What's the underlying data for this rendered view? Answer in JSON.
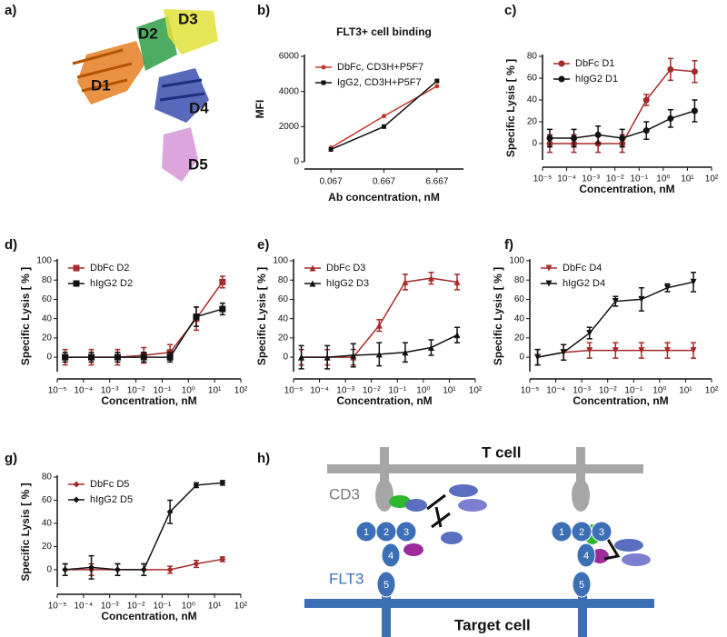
{
  "panel_labels": [
    "a)",
    "b)",
    "c)",
    "d)",
    "e)",
    "f)",
    "g)",
    "h)"
  ],
  "structure": {
    "domains": [
      "D1",
      "D2",
      "D3",
      "D4",
      "D5"
    ]
  },
  "diagram": {
    "cell_labels": [
      "T cell",
      "Target cell"
    ],
    "receptor_labels": [
      "CD3",
      "FLT3"
    ],
    "domains": [
      "1",
      "2",
      "3",
      "4",
      "5",
      "1",
      "2",
      "3",
      "4",
      "5"
    ]
  },
  "chart_data": [
    {
      "type": "line",
      "title": "FLT3+ cell binding",
      "x_label": "Ab concentration, nM",
      "y_label": "MFI",
      "categories": [
        "0.067",
        "0.667",
        "6.667"
      ],
      "ylim": [
        0,
        6000
      ],
      "yticks": [
        0,
        2000,
        4000,
        6000
      ],
      "legend": "upper left",
      "series": [
        {
          "name": "DbFc, CD3H+P5F7",
          "color": "#c0392b",
          "marker": "circle",
          "values": [
            800,
            2600,
            4300
          ]
        },
        {
          "name": "IgG2, CD3H+P5F7",
          "color": "#111111",
          "marker": "square",
          "values": [
            700,
            2000,
            4600
          ]
        }
      ]
    },
    {
      "type": "line",
      "xscale": "log",
      "x_label": "Concentration, nM",
      "y_label": "Specific Lysis [ % ]",
      "x": [
        2e-05,
        0.0002,
        0.002,
        0.02,
        0.2,
        2,
        20
      ],
      "xlim": [
        1e-05,
        100
      ],
      "xticks": [
        {
          "value": 1e-05,
          "label": "10⁻⁵"
        },
        {
          "value": 0.0001,
          "label": "10⁻⁴"
        },
        {
          "value": 0.001,
          "label": "10⁻³"
        },
        {
          "value": 0.01,
          "label": "10⁻²"
        },
        {
          "value": 0.1,
          "label": "10⁻¹"
        },
        {
          "value": 1,
          "label": "10⁰"
        },
        {
          "value": 10,
          "label": "10¹"
        },
        {
          "value": 100,
          "label": "10²"
        }
      ],
      "ylim": [
        -15,
        80
      ],
      "yticks": [
        0,
        20,
        40,
        60,
        80
      ],
      "legend": "upper left",
      "series": [
        {
          "name": "DbFc D1",
          "color": "#a52a2a",
          "marker": "circle",
          "values": [
            0,
            0,
            0,
            0,
            40,
            68,
            66
          ],
          "errors": [
            8,
            8,
            8,
            8,
            5,
            10,
            10
          ]
        },
        {
          "name": "hIgG2 D1",
          "color": "#111111",
          "marker": "circle",
          "values": [
            5,
            5,
            8,
            5,
            12,
            23,
            30
          ],
          "errors": [
            8,
            8,
            8,
            8,
            8,
            8,
            10
          ]
        }
      ]
    },
    {
      "type": "line",
      "xscale": "log",
      "x_label": "Concentration, nM",
      "y_label": "Specific Lysis [ % ]",
      "x": [
        2e-05,
        0.0002,
        0.002,
        0.02,
        0.2,
        2,
        20
      ],
      "xlim": [
        1e-05,
        100
      ],
      "xticks": [
        {
          "value": 1e-05,
          "label": "10⁻⁵"
        },
        {
          "value": 0.0001,
          "label": "10⁻⁴"
        },
        {
          "value": 0.001,
          "label": "10⁻³"
        },
        {
          "value": 0.01,
          "label": "10⁻²"
        },
        {
          "value": 0.1,
          "label": "10⁻¹"
        },
        {
          "value": 1,
          "label": "10⁰"
        },
        {
          "value": 10,
          "label": "10¹"
        },
        {
          "value": 100,
          "label": "10²"
        }
      ],
      "ylim": [
        -15,
        100
      ],
      "yticks": [
        0,
        20,
        40,
        60,
        80,
        100
      ],
      "legend": "upper left",
      "series": [
        {
          "name": "DbFc D2",
          "color": "#a52a2a",
          "marker": "square",
          "values": [
            0,
            0,
            0,
            2,
            5,
            40,
            78
          ],
          "errors": [
            8,
            8,
            8,
            8,
            8,
            12,
            6
          ]
        },
        {
          "name": "hIgG2 D2",
          "color": "#111111",
          "marker": "square",
          "values": [
            0,
            0,
            0,
            0,
            0,
            42,
            50
          ],
          "errors": [
            5,
            5,
            5,
            5,
            5,
            10,
            6
          ]
        }
      ]
    },
    {
      "type": "line",
      "xscale": "log",
      "x_label": "Concentration, nM",
      "y_label": "Specific Lysis [ % ]",
      "x": [
        2e-05,
        0.0002,
        0.002,
        0.02,
        0.2,
        2,
        20
      ],
      "xlim": [
        1e-05,
        100
      ],
      "xticks": [
        {
          "value": 1e-05,
          "label": "10⁻⁵"
        },
        {
          "value": 0.0001,
          "label": "10⁻⁴"
        },
        {
          "value": 0.001,
          "label": "10⁻³"
        },
        {
          "value": 0.01,
          "label": "10⁻²"
        },
        {
          "value": 0.1,
          "label": "10⁻¹"
        },
        {
          "value": 1,
          "label": "10⁰"
        },
        {
          "value": 10,
          "label": "10¹"
        },
        {
          "value": 100,
          "label": "10²"
        }
      ],
      "ylim": [
        -15,
        100
      ],
      "yticks": [
        0,
        20,
        40,
        60,
        80,
        100
      ],
      "legend": "upper left",
      "series": [
        {
          "name": "DbFc D3",
          "color": "#a52a2a",
          "marker": "triangle",
          "values": [
            0,
            0,
            0,
            33,
            78,
            82,
            78
          ],
          "errors": [
            8,
            8,
            8,
            6,
            8,
            6,
            8
          ]
        },
        {
          "name": "hIgG2 D3",
          "color": "#111111",
          "marker": "triangle",
          "values": [
            0,
            0,
            2,
            3,
            5,
            10,
            23
          ],
          "errors": [
            12,
            12,
            12,
            12,
            10,
            8,
            8
          ]
        }
      ]
    },
    {
      "type": "line",
      "xscale": "log",
      "x_label": "Concentration, nM",
      "y_label": "Specific Lysis [ % ]",
      "x": [
        2e-05,
        0.0002,
        0.002,
        0.02,
        0.2,
        2,
        20
      ],
      "xlim": [
        1e-05,
        100
      ],
      "xticks": [
        {
          "value": 1e-05,
          "label": "10⁻⁵"
        },
        {
          "value": 0.0001,
          "label": "10⁻⁴"
        },
        {
          "value": 0.001,
          "label": "10⁻³"
        },
        {
          "value": 0.01,
          "label": "10⁻²"
        },
        {
          "value": 0.1,
          "label": "10⁻¹"
        },
        {
          "value": 1,
          "label": "10⁰"
        },
        {
          "value": 10,
          "label": "10¹"
        },
        {
          "value": 100,
          "label": "10²"
        }
      ],
      "ylim": [
        -15,
        100
      ],
      "yticks": [
        0,
        20,
        40,
        60,
        80,
        100
      ],
      "legend": "upper left",
      "series": [
        {
          "name": "DbFc D4",
          "color": "#a52a2a",
          "marker": "triangle-down",
          "values": [
            0,
            5,
            7,
            7,
            7,
            7,
            7
          ],
          "errors": [
            8,
            8,
            8,
            8,
            8,
            8,
            8
          ]
        },
        {
          "name": "hIgG2 D4",
          "color": "#111111",
          "marker": "triangle-down",
          "values": [
            0,
            5,
            25,
            58,
            60,
            72,
            78
          ],
          "errors": [
            8,
            8,
            6,
            5,
            12,
            4,
            10
          ]
        }
      ]
    },
    {
      "type": "line",
      "xscale": "log",
      "x_label": "Concentration, nM",
      "y_label": "Specific Lysis [ % ]",
      "x": [
        2e-05,
        0.0002,
        0.002,
        0.02,
        0.2,
        2,
        20
      ],
      "xlim": [
        1e-05,
        100
      ],
      "xticks": [
        {
          "value": 1e-05,
          "label": "10⁻⁵"
        },
        {
          "value": 0.0001,
          "label": "10⁻⁴"
        },
        {
          "value": 0.001,
          "label": "10⁻³"
        },
        {
          "value": 0.01,
          "label": "10⁻²"
        },
        {
          "value": 0.1,
          "label": "10⁻¹"
        },
        {
          "value": 1,
          "label": "10⁰"
        },
        {
          "value": 10,
          "label": "10¹"
        },
        {
          "value": 100,
          "label": "10²"
        }
      ],
      "ylim": [
        -15,
        80
      ],
      "yticks": [
        0,
        20,
        40,
        60,
        80
      ],
      "legend": "upper left",
      "series": [
        {
          "name": "DbFc D5",
          "color": "#a52a2a",
          "marker": "diamond",
          "values": [
            0,
            0,
            0,
            0,
            0,
            5,
            9
          ],
          "errors": [
            5,
            5,
            5,
            5,
            3,
            3,
            2
          ]
        },
        {
          "name": "hIgG2 D5",
          "color": "#111111",
          "marker": "diamond",
          "values": [
            0,
            2,
            0,
            0,
            50,
            73,
            75
          ],
          "errors": [
            5,
            10,
            5,
            5,
            10,
            2,
            2
          ]
        }
      ]
    }
  ]
}
